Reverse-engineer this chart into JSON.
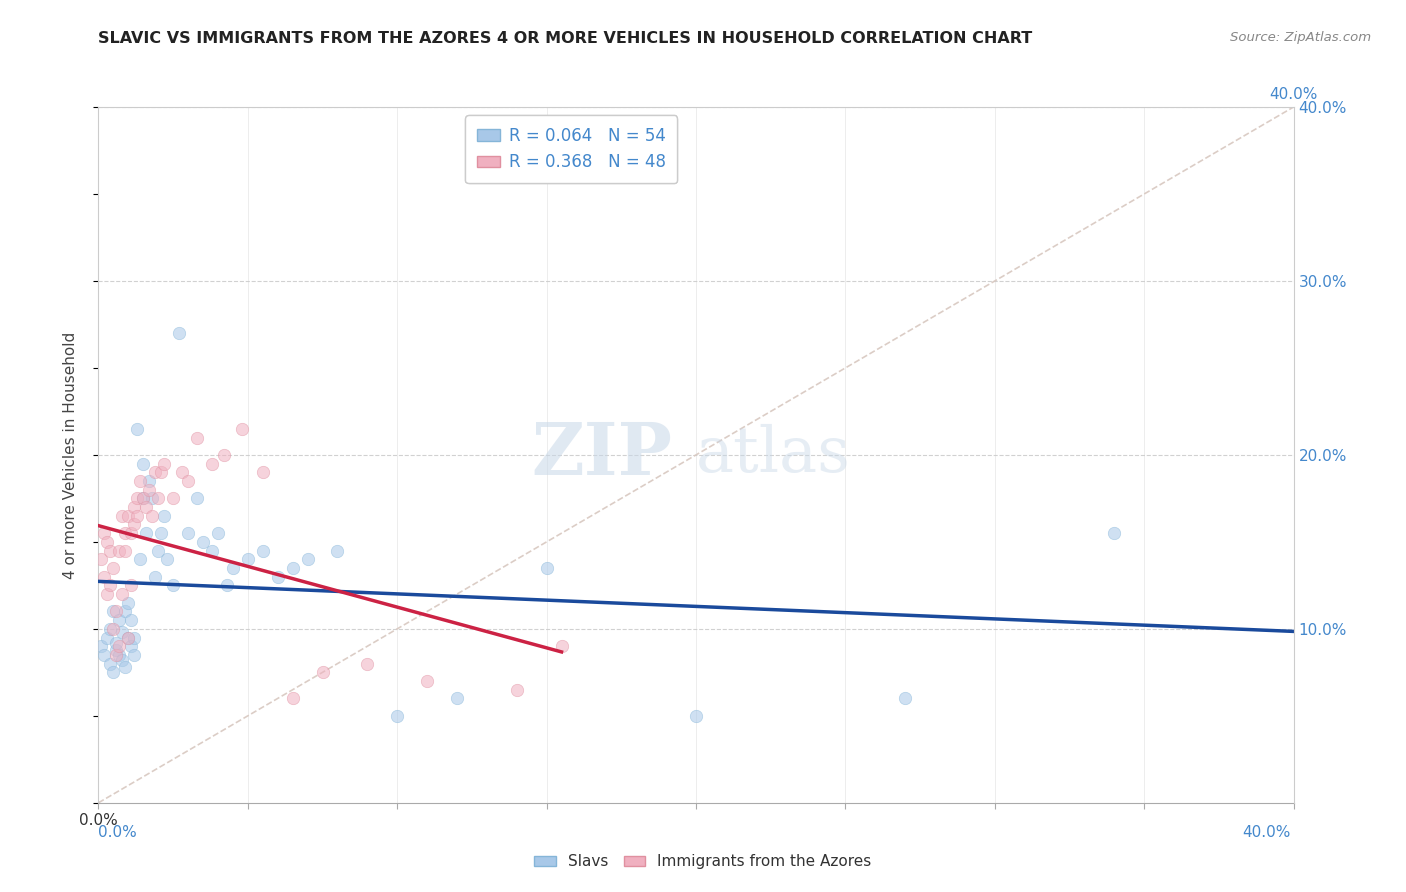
{
  "title": "SLAVIC VS IMMIGRANTS FROM THE AZORES 4 OR MORE VEHICLES IN HOUSEHOLD CORRELATION CHART",
  "source_text": "Source: ZipAtlas.com",
  "ylabel": "4 or more Vehicles in Household",
  "xmin": 0.0,
  "xmax": 0.4,
  "ymin": 0.0,
  "ymax": 0.4,
  "grid_color": "#cccccc",
  "background_color": "#ffffff",
  "slavs_color": "#a8c8e8",
  "slavs_edge_color": "#85b5d8",
  "slavs_line_color": "#1a4a9c",
  "azores_color": "#f0b0c0",
  "azores_edge_color": "#e090a0",
  "azores_line_color": "#cc2244",
  "diag_color": "#d0c8c0",
  "scatter_alpha": 0.55,
  "scatter_size": 80,
  "R_slavs": 0.064,
  "N_slavs": 54,
  "R_azores": 0.368,
  "N_azores": 48,
  "legend_label_slavs": "Slavs",
  "legend_label_azores": "Immigrants from the Azores",
  "watermark_zip": "ZIP",
  "watermark_atlas": "atlas",
  "tick_color_blue": "#4488cc",
  "tick_color_dark": "#333333",
  "slavs_x": [
    0.001,
    0.002,
    0.003,
    0.004,
    0.004,
    0.005,
    0.005,
    0.006,
    0.006,
    0.007,
    0.007,
    0.008,
    0.008,
    0.009,
    0.009,
    0.01,
    0.01,
    0.011,
    0.011,
    0.012,
    0.012,
    0.013,
    0.014,
    0.015,
    0.015,
    0.016,
    0.017,
    0.018,
    0.019,
    0.02,
    0.021,
    0.022,
    0.023,
    0.025,
    0.027,
    0.03,
    0.033,
    0.035,
    0.038,
    0.04,
    0.043,
    0.045,
    0.05,
    0.055,
    0.06,
    0.065,
    0.07,
    0.08,
    0.1,
    0.12,
    0.15,
    0.2,
    0.27,
    0.34
  ],
  "slavs_y": [
    0.09,
    0.085,
    0.095,
    0.08,
    0.1,
    0.075,
    0.11,
    0.088,
    0.092,
    0.085,
    0.105,
    0.082,
    0.098,
    0.11,
    0.078,
    0.095,
    0.115,
    0.09,
    0.105,
    0.085,
    0.095,
    0.215,
    0.14,
    0.175,
    0.195,
    0.155,
    0.185,
    0.175,
    0.13,
    0.145,
    0.155,
    0.165,
    0.14,
    0.125,
    0.27,
    0.155,
    0.175,
    0.15,
    0.145,
    0.155,
    0.125,
    0.135,
    0.14,
    0.145,
    0.13,
    0.135,
    0.14,
    0.145,
    0.05,
    0.06,
    0.135,
    0.05,
    0.06,
    0.155
  ],
  "azores_x": [
    0.001,
    0.002,
    0.002,
    0.003,
    0.003,
    0.004,
    0.004,
    0.005,
    0.005,
    0.006,
    0.006,
    0.007,
    0.007,
    0.008,
    0.008,
    0.009,
    0.009,
    0.01,
    0.01,
    0.011,
    0.011,
    0.012,
    0.012,
    0.013,
    0.013,
    0.014,
    0.015,
    0.016,
    0.017,
    0.018,
    0.019,
    0.02,
    0.021,
    0.022,
    0.025,
    0.028,
    0.03,
    0.033,
    0.038,
    0.042,
    0.048,
    0.055,
    0.065,
    0.075,
    0.09,
    0.11,
    0.14,
    0.155
  ],
  "azores_y": [
    0.14,
    0.155,
    0.13,
    0.15,
    0.12,
    0.125,
    0.145,
    0.1,
    0.135,
    0.085,
    0.11,
    0.09,
    0.145,
    0.12,
    0.165,
    0.155,
    0.145,
    0.165,
    0.095,
    0.155,
    0.125,
    0.16,
    0.17,
    0.165,
    0.175,
    0.185,
    0.175,
    0.17,
    0.18,
    0.165,
    0.19,
    0.175,
    0.19,
    0.195,
    0.175,
    0.19,
    0.185,
    0.21,
    0.195,
    0.2,
    0.215,
    0.19,
    0.06,
    0.075,
    0.08,
    0.07,
    0.065,
    0.09
  ]
}
